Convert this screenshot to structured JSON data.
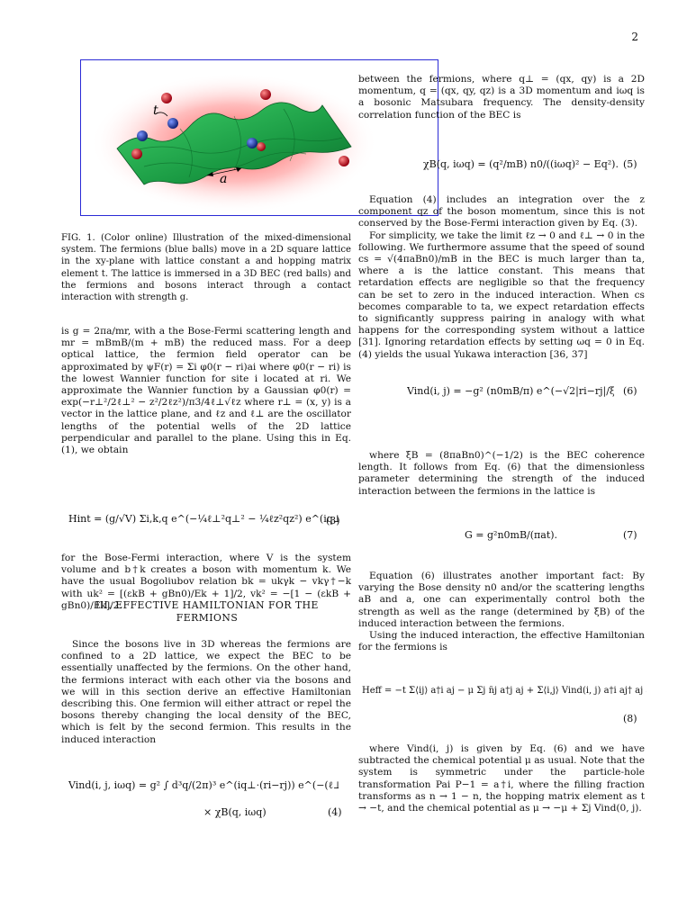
{
  "page_number": "2",
  "figure": {
    "label_t": "t",
    "label_a": "a",
    "caption": "FIG. 1. (Color online) Illustration of the mixed-dimensional system. The fermions (blue balls) move in a 2D square lattice in the xy-plane with lattice constant a and hopping matrix element t. The lattice is immersed in a 3D BEC (red balls) and the fermions and bosons interact through a contact interaction with strength g."
  },
  "left": {
    "p1": "is g = 2πa/mr, with a the Bose-Fermi scattering length and mr = mBmB/(m + mB) the reduced mass. For a deep optical lattice, the fermion field operator can be approximated by ψF(r) = Σi φ0(r − ri)ai where φ0(r − ri) is the lowest Wannier function for site i located at ri. We approximate the Wannier function by a Gaussian φ0(r) = exp(−r⊥²/2ℓ⊥² − z²/2ℓz²)/π3/4ℓ⊥√ℓz where r⊥ = (x, y) is a vector in the lattice plane, and ℓz and ℓ⊥ are the oscillator lengths of the potential wells of the 2D lattice perpendicular and parallel to the plane. Using this in Eq. (1), we obtain",
    "eq3": "Hint = (g/√V) Σi,k,q e^(−¼ℓ⊥²q⊥² − ¼ℓz²qz²) e^(iq⊥·ri) b†k+q bk a†i ai",
    "eq3_num": "(3)",
    "p2": "for the Bose-Fermi interaction, where V is the system volume and b†k creates a boson with momentum k. We have the usual Bogoliubov relation bk = ukγk − vkγ†−k with uk² = [(εkB + gBn0)/Ek + 1]/2, vk² = −[1 − (εkB + gBn0)/Ek]/2.",
    "section_heading": "III. EFFECTIVE HAMILTONIAN FOR THE FERMIONS",
    "p3": "Since the bosons live in 3D whereas the fermions are confined to a 2D lattice, we expect the BEC to be essentially unaffected by the fermions. On the other hand, the fermions interact with each other via the bosons and we will in this section derive an effective Hamiltonian describing this. One fermion will either attract or repel the bosons thereby changing the local density of the BEC, which is felt by the second fermion. This results in the induced interaction",
    "eq4_line1": "Vind(i, j, iωq) = g² ∫ d³q/(2π)³ e^(iq⊥·(ri−rj)) e^(−(ℓ⊥²q⊥² − ℓz²qz²)/2)",
    "eq4_line2": "× χB(q, iωq)",
    "eq4_num": "(4)"
  },
  "right": {
    "p1": "between the fermions, where q⊥ = (qx, qy) is a 2D momentum, q = (qx, qy, qz) is a 3D momentum and iωq is a bosonic Matsubara frequency. The density-density correlation function of the BEC is",
    "eq5": "χB(q, iωq) = (q²/mB) n0/((iωq)² − Eq²).",
    "eq5_num": "(5)",
    "p2": "Equation (4) includes an integration over the z component qz of the boson momentum, since this is not conserved by the Bose-Fermi interaction given by Eq. (3).",
    "p3": "For simplicity, we take the limit ℓz → 0 and ℓ⊥ → 0 in the following. We furthermore assume that the speed of sound cs = √(4πaBn0)/mB in the BEC is much larger than ta, where a is the lattice constant. This means that retardation effects are negligible so that the frequency can be set to zero in the induced interaction. When cs becomes comparable to ta, we expect retardation effects to significantly suppress pairing in analogy with what happens for the corresponding system without a lattice [31]. Ignoring retardation effects by setting ωq = 0 in Eq. (4) yields the usual Yukawa interaction [36, 37]",
    "eq6": "Vind(i, j) = −g² (n0mB/π) e^(−√2|ri−rj|/ξB)/|ri − rj|,",
    "eq6_num": "(6)",
    "p4": "where ξB = (8πaBn0)^(−1/2) is the BEC coherence length. It follows from Eq. (6) that the dimensionless parameter determining the strength of the induced interaction between the fermions in the lattice is",
    "eq7": "G = g²n0mB/(πat).",
    "eq7_num": "(7)",
    "p5": "Equation (6) illustrates another important fact: By varying the Bose density n0 and/or the scattering lengths aB and a, one can experimentally control both the strength as well as the range (determined by ξB) of the induced interaction between the fermions.",
    "p6": "Using the induced interaction, the effective Hamiltonian for the fermions is",
    "eq8": "Heff = −t Σ⟨ij⟩ a†i aj − μ Σj n̂j a†j aj + Σ⟨i,j⟩ Vind(i, j) a†i aj† aj ai,",
    "eq8_num": "(8)",
    "p7": "where Vind(i, j) is given by Eq. (6) and we have subtracted the chemical potential μ as usual. Note that the system is symmetric under the particle-hole transformation Pai P−1 = a†i, where the filling fraction transforms as n → 1 − n, the hopping matrix element as t → −t, and the chemical potential as μ → −μ + Σj Vind(0, j)."
  },
  "colors": {
    "figure_frame": "#2b2bd6",
    "lattice_green": "#1ea84a",
    "fermion_blue": "#1f3fa6",
    "boson_red": "#c0101a",
    "glow_red": "#ff3b3b"
  }
}
